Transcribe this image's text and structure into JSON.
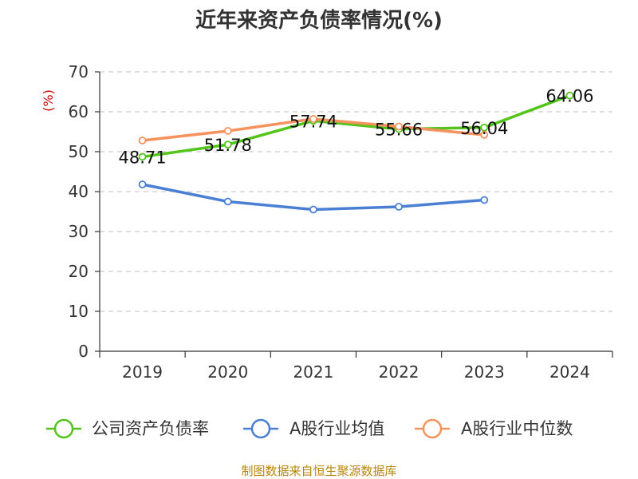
{
  "chart_data": {
    "type": "line",
    "title": "近年来资产负债率情况(%)",
    "ylabel": "(%)",
    "categories": [
      "2019",
      "2020",
      "2021",
      "2022",
      "2023",
      "2024"
    ],
    "ylim": [
      0,
      70
    ],
    "yticks": [
      0,
      10,
      20,
      30,
      40,
      50,
      60,
      70
    ],
    "grid": true,
    "legend_position": "bottom",
    "series": [
      {
        "name": "公司资产负债率",
        "color": "#52c41a",
        "values": [
          48.71,
          51.78,
          57.74,
          55.66,
          56.04,
          64.06
        ],
        "labels": [
          "48.71",
          "51.78",
          "57.74",
          "55.66",
          "56.04",
          "64.06"
        ]
      },
      {
        "name": "A股行业均值",
        "color": "#4a7fd4",
        "values": [
          41.8,
          37.5,
          35.5,
          36.2,
          37.9,
          null
        ]
      },
      {
        "name": "A股行业中位数",
        "color": "#f5925e",
        "values": [
          52.8,
          55.2,
          58.2,
          56.3,
          54.2,
          null
        ]
      }
    ]
  },
  "source": "制图数据来自恒生聚源数据库"
}
